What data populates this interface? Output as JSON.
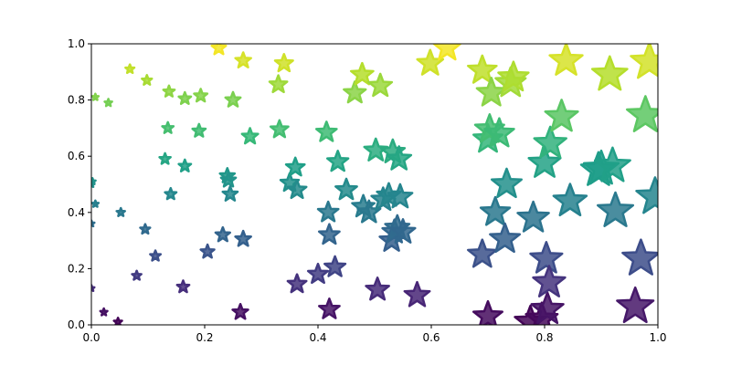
{
  "chart_data": {
    "type": "scatter",
    "title": "",
    "xlabel": "",
    "ylabel": "",
    "xlim": [
      0,
      1
    ],
    "ylim": [
      0,
      1
    ],
    "grid": false,
    "marker": "star",
    "colormap": "viridis",
    "xticks": [
      "0.0",
      "0.2",
      "0.4",
      "0.6",
      "0.8",
      "1.0"
    ],
    "yticks": [
      "0.0",
      "0.2",
      "0.4",
      "0.6",
      "0.8",
      "1.0"
    ],
    "series": [
      {
        "points": [
          {
            "x": 0.0,
            "y": 0.13
          },
          {
            "x": 0.0,
            "y": 0.36
          },
          {
            "x": 0.0,
            "y": 0.5
          },
          {
            "x": 0.002,
            "y": 0.51
          },
          {
            "x": 0.007,
            "y": 0.81
          },
          {
            "x": 0.007,
            "y": 0.43
          },
          {
            "x": 0.022,
            "y": 0.045
          },
          {
            "x": 0.03,
            "y": 0.79
          },
          {
            "x": 0.047,
            "y": 0.01
          },
          {
            "x": 0.052,
            "y": 0.4
          },
          {
            "x": 0.068,
            "y": 0.91
          },
          {
            "x": 0.08,
            "y": 0.175
          },
          {
            "x": 0.095,
            "y": 0.34
          },
          {
            "x": 0.098,
            "y": 0.87
          },
          {
            "x": 0.113,
            "y": 0.245
          },
          {
            "x": 0.13,
            "y": 0.59
          },
          {
            "x": 0.135,
            "y": 0.7
          },
          {
            "x": 0.137,
            "y": 0.83
          },
          {
            "x": 0.14,
            "y": 0.465
          },
          {
            "x": 0.162,
            "y": 0.135
          },
          {
            "x": 0.165,
            "y": 0.805
          },
          {
            "x": 0.165,
            "y": 0.565
          },
          {
            "x": 0.19,
            "y": 0.69
          },
          {
            "x": 0.193,
            "y": 0.815
          },
          {
            "x": 0.205,
            "y": 0.26
          },
          {
            "x": 0.225,
            "y": 0.985
          },
          {
            "x": 0.232,
            "y": 0.32
          },
          {
            "x": 0.24,
            "y": 0.53
          },
          {
            "x": 0.242,
            "y": 0.515
          },
          {
            "x": 0.245,
            "y": 0.465
          },
          {
            "x": 0.25,
            "y": 0.8
          },
          {
            "x": 0.263,
            "y": 0.045
          },
          {
            "x": 0.268,
            "y": 0.94
          },
          {
            "x": 0.268,
            "y": 0.305
          },
          {
            "x": 0.28,
            "y": 0.67
          },
          {
            "x": 0.33,
            "y": 0.855
          },
          {
            "x": 0.332,
            "y": 0.695
          },
          {
            "x": 0.34,
            "y": 0.93
          },
          {
            "x": 0.35,
            "y": 0.505
          },
          {
            "x": 0.36,
            "y": 0.56
          },
          {
            "x": 0.363,
            "y": 0.145
          },
          {
            "x": 0.363,
            "y": 0.48
          },
          {
            "x": 0.4,
            "y": 0.18
          },
          {
            "x": 0.415,
            "y": 0.685
          },
          {
            "x": 0.418,
            "y": 0.4
          },
          {
            "x": 0.42,
            "y": 0.32
          },
          {
            "x": 0.42,
            "y": 0.055
          },
          {
            "x": 0.43,
            "y": 0.205
          },
          {
            "x": 0.435,
            "y": 0.58
          },
          {
            "x": 0.45,
            "y": 0.48
          },
          {
            "x": 0.465,
            "y": 0.825
          },
          {
            "x": 0.478,
            "y": 0.89
          },
          {
            "x": 0.48,
            "y": 0.42
          },
          {
            "x": 0.49,
            "y": 0.4
          },
          {
            "x": 0.502,
            "y": 0.62
          },
          {
            "x": 0.505,
            "y": 0.125
          },
          {
            "x": 0.51,
            "y": 0.85
          },
          {
            "x": 0.515,
            "y": 0.445
          },
          {
            "x": 0.525,
            "y": 0.46
          },
          {
            "x": 0.53,
            "y": 0.3
          },
          {
            "x": 0.532,
            "y": 0.615
          },
          {
            "x": 0.535,
            "y": 0.33
          },
          {
            "x": 0.54,
            "y": 0.345
          },
          {
            "x": 0.543,
            "y": 0.59
          },
          {
            "x": 0.545,
            "y": 0.455
          },
          {
            "x": 0.55,
            "y": 0.33
          },
          {
            "x": 0.575,
            "y": 0.105
          },
          {
            "x": 0.598,
            "y": 0.93
          },
          {
            "x": 0.628,
            "y": 0.985
          },
          {
            "x": 0.69,
            "y": 0.25
          },
          {
            "x": 0.69,
            "y": 0.905
          },
          {
            "x": 0.7,
            "y": 0.03
          },
          {
            "x": 0.7,
            "y": 0.66
          },
          {
            "x": 0.703,
            "y": 0.695
          },
          {
            "x": 0.706,
            "y": 0.825
          },
          {
            "x": 0.713,
            "y": 0.4
          },
          {
            "x": 0.72,
            "y": 0.68
          },
          {
            "x": 0.73,
            "y": 0.305
          },
          {
            "x": 0.733,
            "y": 0.5
          },
          {
            "x": 0.74,
            "y": 0.86
          },
          {
            "x": 0.745,
            "y": 0.88
          },
          {
            "x": 0.775,
            "y": 0.01
          },
          {
            "x": 0.78,
            "y": 0.38
          },
          {
            "x": 0.795,
            "y": 0.02
          },
          {
            "x": 0.8,
            "y": 0.575
          },
          {
            "x": 0.803,
            "y": 0.235
          },
          {
            "x": 0.805,
            "y": 0.055
          },
          {
            "x": 0.808,
            "y": 0.15
          },
          {
            "x": 0.81,
            "y": 0.645
          },
          {
            "x": 0.83,
            "y": 0.74
          },
          {
            "x": 0.838,
            "y": 0.94
          },
          {
            "x": 0.845,
            "y": 0.44
          },
          {
            "x": 0.895,
            "y": 0.55
          },
          {
            "x": 0.9,
            "y": 0.555
          },
          {
            "x": 0.915,
            "y": 0.89
          },
          {
            "x": 0.92,
            "y": 0.565
          },
          {
            "x": 0.925,
            "y": 0.405
          },
          {
            "x": 0.96,
            "y": 0.065
          },
          {
            "x": 0.97,
            "y": 0.235
          },
          {
            "x": 0.978,
            "y": 0.745
          },
          {
            "x": 0.985,
            "y": 0.935
          },
          {
            "x": 0.995,
            "y": 0.455
          }
        ]
      }
    ]
  }
}
